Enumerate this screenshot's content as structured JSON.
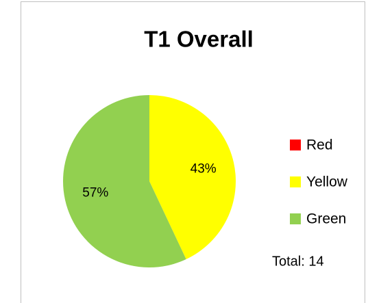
{
  "chart_data": {
    "type": "pie",
    "title": "T1 Overall",
    "categories": [
      "Red",
      "Yellow",
      "Green"
    ],
    "values": [
      0,
      43,
      57
    ],
    "value_labels": [
      null,
      "43%",
      "57%"
    ],
    "colors": [
      "#ff0000",
      "#ffff00",
      "#92d050"
    ],
    "legend": "right",
    "annotation": "Total: 14"
  }
}
